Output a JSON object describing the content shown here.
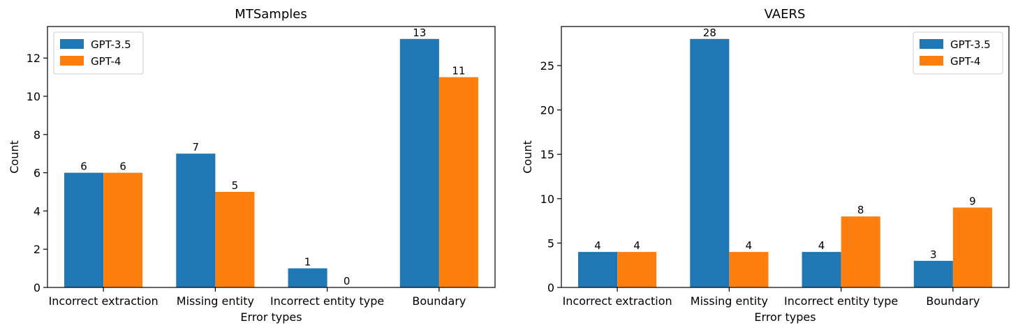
{
  "chart_data": [
    {
      "type": "bar",
      "title": "MTSamples",
      "xlabel": "Error types",
      "ylabel": "Count",
      "categories": [
        "Incorrect extraction",
        "Missing entity",
        "Incorrect entity type",
        "Boundary"
      ],
      "series": [
        {
          "name": "GPT-3.5",
          "color": "#1f77b4",
          "values": [
            6,
            7,
            1,
            13
          ]
        },
        {
          "name": "GPT-4",
          "color": "#ff7f0e",
          "values": [
            6,
            5,
            0,
            11
          ]
        }
      ],
      "ylim": [
        0,
        13.65
      ],
      "yticks": [
        0,
        2,
        4,
        6,
        8,
        10,
        12
      ],
      "legend": "upper-left",
      "grid": false
    },
    {
      "type": "bar",
      "title": "VAERS",
      "xlabel": "Error types",
      "ylabel": "Count",
      "categories": [
        "Incorrect extraction",
        "Missing entity",
        "Incorrect entity type",
        "Boundary"
      ],
      "series": [
        {
          "name": "GPT-3.5",
          "color": "#1f77b4",
          "values": [
            4,
            28,
            4,
            3
          ]
        },
        {
          "name": "GPT-4",
          "color": "#ff7f0e",
          "values": [
            4,
            4,
            8,
            9
          ]
        }
      ],
      "ylim": [
        0,
        29.4
      ],
      "yticks": [
        0,
        5,
        10,
        15,
        20,
        25
      ],
      "legend": "upper-right",
      "grid": false
    }
  ]
}
